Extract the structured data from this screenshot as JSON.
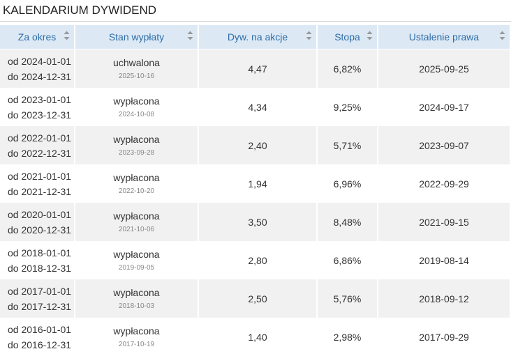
{
  "header": {
    "title": "KALENDARIUM DYWIDEND"
  },
  "table": {
    "columns": [
      "Za okres",
      "Stan wypłaty",
      "Dyw. na akcje",
      "Stopa",
      "Ustalenie prawa"
    ],
    "rows": [
      {
        "period_from": "od 2024-01-01",
        "period_to": "do 2024-12-31",
        "status": "uchwalona",
        "status_date": "2025-10-16",
        "dividend": "4,47",
        "yield": "6,82%",
        "record_date": "2025-09-25"
      },
      {
        "period_from": "od 2023-01-01",
        "period_to": "do 2023-12-31",
        "status": "wypłacona",
        "status_date": "2024-10-08",
        "dividend": "4,34",
        "yield": "9,25%",
        "record_date": "2024-09-17"
      },
      {
        "period_from": "od 2022-01-01",
        "period_to": "do 2022-12-31",
        "status": "wypłacona",
        "status_date": "2023-09-28",
        "dividend": "2,40",
        "yield": "5,71%",
        "record_date": "2023-09-07"
      },
      {
        "period_from": "od 2021-01-01",
        "period_to": "do 2021-12-31",
        "status": "wypłacona",
        "status_date": "2022-10-20",
        "dividend": "1,94",
        "yield": "6,96%",
        "record_date": "2022-09-29"
      },
      {
        "period_from": "od 2020-01-01",
        "period_to": "do 2020-12-31",
        "status": "wypłacona",
        "status_date": "2021-10-06",
        "dividend": "3,50",
        "yield": "8,48%",
        "record_date": "2021-09-15"
      },
      {
        "period_from": "od 2018-01-01",
        "period_to": "do 2018-12-31",
        "status": "wypłacona",
        "status_date": "2019-09-05",
        "dividend": "2,80",
        "yield": "6,86%",
        "record_date": "2019-08-14"
      },
      {
        "period_from": "od 2017-01-01",
        "period_to": "do 2017-12-31",
        "status": "wypłacona",
        "status_date": "2018-10-03",
        "dividend": "2,50",
        "yield": "5,76%",
        "record_date": "2018-09-12"
      },
      {
        "period_from": "od 2016-01-01",
        "period_to": "do 2016-12-31",
        "status": "wypłacona",
        "status_date": "2017-10-19",
        "dividend": "1,40",
        "yield": "2,98%",
        "record_date": "2017-09-29"
      }
    ]
  }
}
